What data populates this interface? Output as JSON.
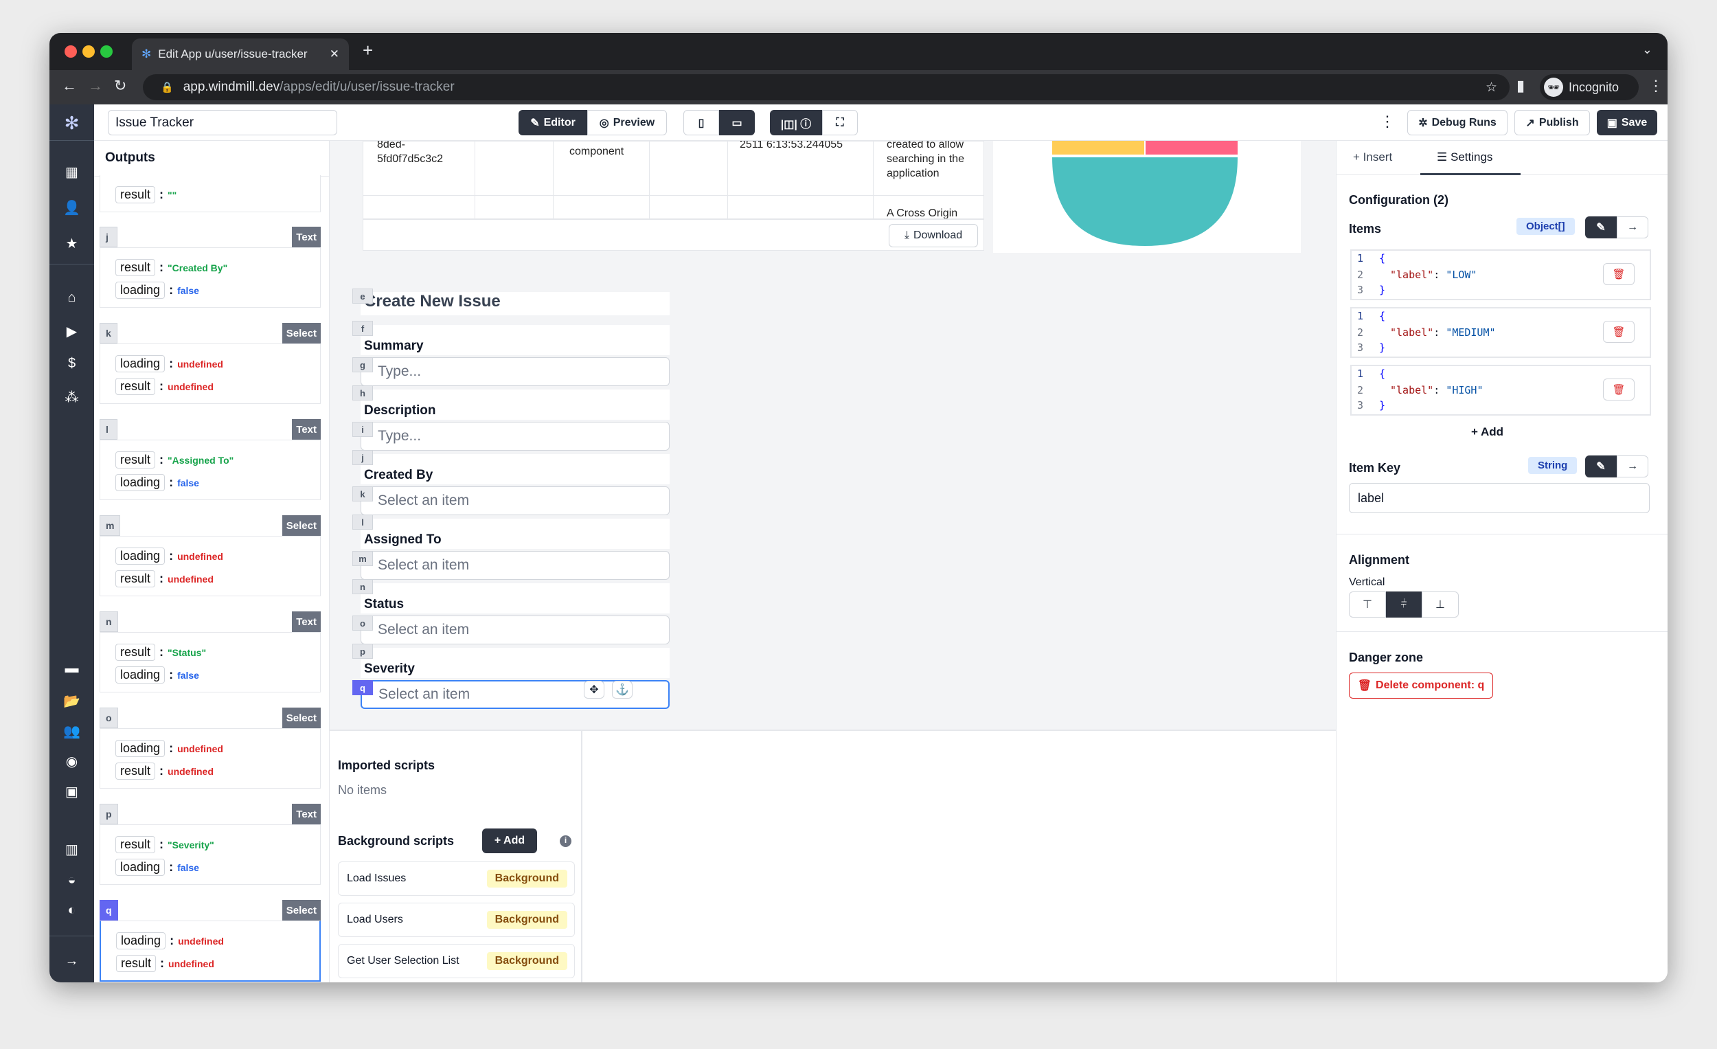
{
  "browser": {
    "tab_title": "Edit App u/user/issue-tracker",
    "url_host": "app.windmill.dev",
    "url_path": "/apps/edit/u/user/issue-tracker",
    "profile": "Incognito"
  },
  "header": {
    "app_name": "Issue Tracker",
    "editor": "Editor",
    "preview": "Preview",
    "debug_runs": "Debug Runs",
    "publish": "Publish",
    "save": "Save"
  },
  "outputs": {
    "title": "Outputs",
    "cards": [
      {
        "id": "",
        "type": "",
        "rows": [
          {
            "k": "result",
            "v": "\"\"",
            "t": "s"
          }
        ]
      },
      {
        "id": "j",
        "type": "Text",
        "rows": [
          {
            "k": "result",
            "v": "\"Created By\"",
            "t": "s"
          },
          {
            "k": "loading",
            "v": "false",
            "t": "b"
          }
        ]
      },
      {
        "id": "k",
        "type": "Select",
        "rows": [
          {
            "k": "loading",
            "v": "undefined",
            "t": "u"
          },
          {
            "k": "result",
            "v": "undefined",
            "t": "u"
          }
        ]
      },
      {
        "id": "l",
        "type": "Text",
        "rows": [
          {
            "k": "result",
            "v": "\"Assigned To\"",
            "t": "s"
          },
          {
            "k": "loading",
            "v": "false",
            "t": "b"
          }
        ]
      },
      {
        "id": "m",
        "type": "Select",
        "rows": [
          {
            "k": "loading",
            "v": "undefined",
            "t": "u"
          },
          {
            "k": "result",
            "v": "undefined",
            "t": "u"
          }
        ]
      },
      {
        "id": "n",
        "type": "Text",
        "rows": [
          {
            "k": "result",
            "v": "\"Status\"",
            "t": "s"
          },
          {
            "k": "loading",
            "v": "false",
            "t": "b"
          }
        ]
      },
      {
        "id": "o",
        "type": "Select",
        "rows": [
          {
            "k": "loading",
            "v": "undefined",
            "t": "u"
          },
          {
            "k": "result",
            "v": "undefined",
            "t": "u"
          }
        ]
      },
      {
        "id": "p",
        "type": "Text",
        "rows": [
          {
            "k": "result",
            "v": "\"Severity\"",
            "t": "s"
          },
          {
            "k": "loading",
            "v": "false",
            "t": "b"
          }
        ]
      },
      {
        "id": "q",
        "type": "Select",
        "selected": true,
        "rows": [
          {
            "k": "loading",
            "v": "undefined",
            "t": "u"
          },
          {
            "k": "result",
            "v": "undefined",
            "t": "u"
          }
        ]
      }
    ]
  },
  "table": {
    "cells": [
      "8ded-\n5fd0f7d5c3c2",
      "component",
      "2511 6:13:53.244055",
      "created to allow\nsearching in the\napplication",
      "A Cross Origin"
    ],
    "download": "Download"
  },
  "pie": {
    "colors": [
      "#ffcd56",
      "#ff6384",
      "#4bc0c0"
    ]
  },
  "form": {
    "title_id": "e",
    "title": "Create New Issue",
    "fields": [
      {
        "label_id": "f",
        "label": "Summary",
        "input_id": "g",
        "placeholder": "Type..."
      },
      {
        "label_id": "h",
        "label": "Description",
        "input_id": "i",
        "placeholder": "Type..."
      },
      {
        "label_id": "j",
        "label": "Created By",
        "input_id": "k",
        "placeholder": "Select an item"
      },
      {
        "label_id": "l",
        "label": "Assigned To",
        "input_id": "m",
        "placeholder": "Select an item"
      },
      {
        "label_id": "n",
        "label": "Status",
        "input_id": "o",
        "placeholder": "Select an item"
      },
      {
        "label_id": "p",
        "label": "Severity",
        "input_id": "q",
        "placeholder": "Select an item"
      }
    ]
  },
  "scripts": {
    "imported_title": "Imported scripts",
    "imported_empty": "No items",
    "background_title": "Background scripts",
    "add": "+ Add",
    "badge": "Background",
    "items": [
      "Load Issues",
      "Load Users",
      "Get User Selection List"
    ]
  },
  "settings": {
    "tab_insert": "Insert",
    "tab_settings": "Settings",
    "config_title": "Configuration (2)",
    "items_label": "Items",
    "items_type": "Object[]",
    "items": [
      "LOW",
      "MEDIUM",
      "HIGH"
    ],
    "add": "+ Add",
    "item_key_label": "Item Key",
    "item_key_type": "String",
    "item_key_value": "label",
    "alignment_title": "Alignment",
    "vertical_label": "Vertical",
    "vertical_selected": "center",
    "danger_title": "Danger zone",
    "delete_label": "Delete component: q"
  }
}
